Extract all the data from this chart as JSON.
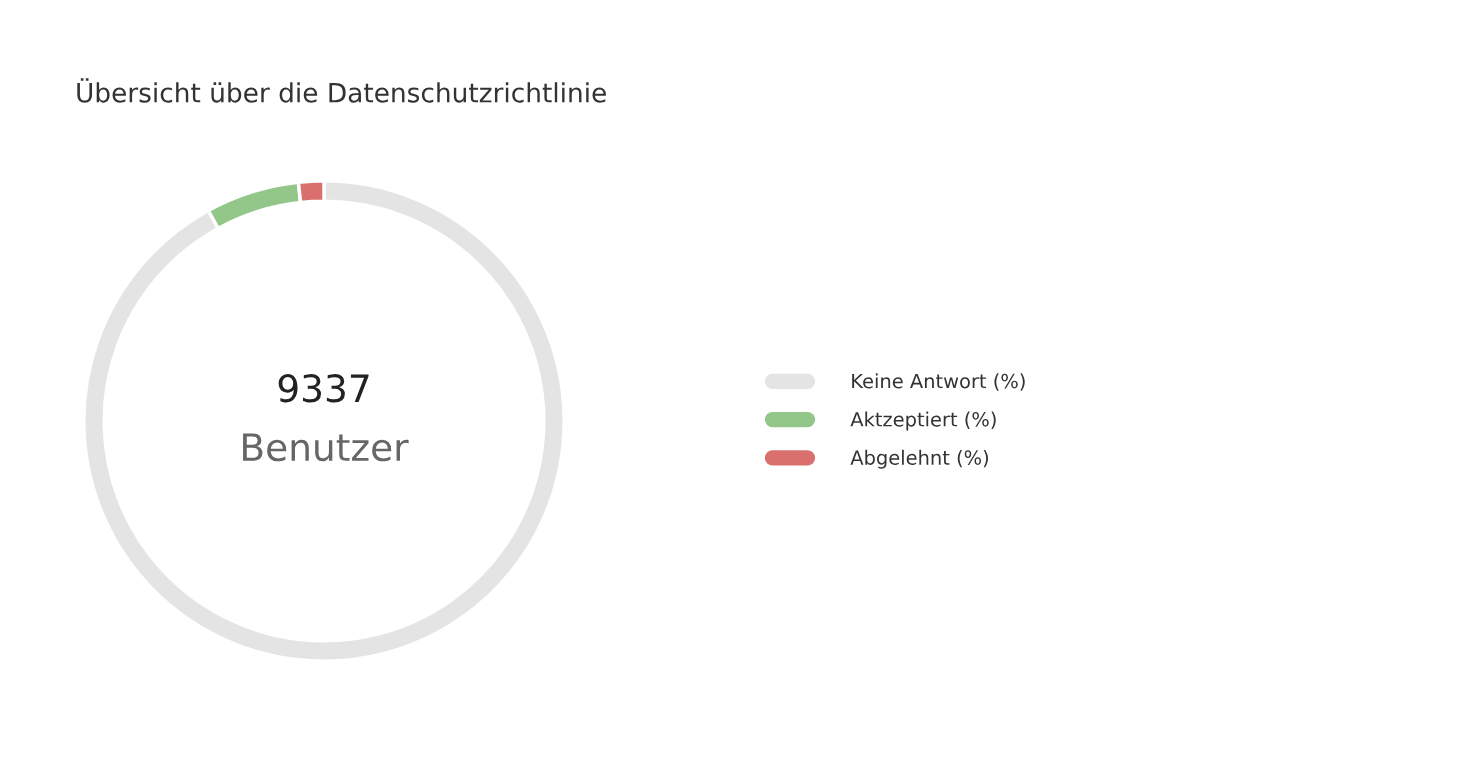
{
  "chart_data": {
    "type": "donut",
    "title": "Übersicht über die Datenschutzrichtlinie",
    "categories": [
      "Keine Antwort (%)",
      "Aktzeptiert (%)",
      "Abgelehnt (%)"
    ],
    "values": [
      92.0,
      6.3,
      1.7
    ],
    "colors": [
      "#e3e4e3",
      "#93c78a",
      "#d9706e"
    ],
    "annotations": [
      "9337",
      "Benutzer"
    ],
    "legend": "right"
  }
}
